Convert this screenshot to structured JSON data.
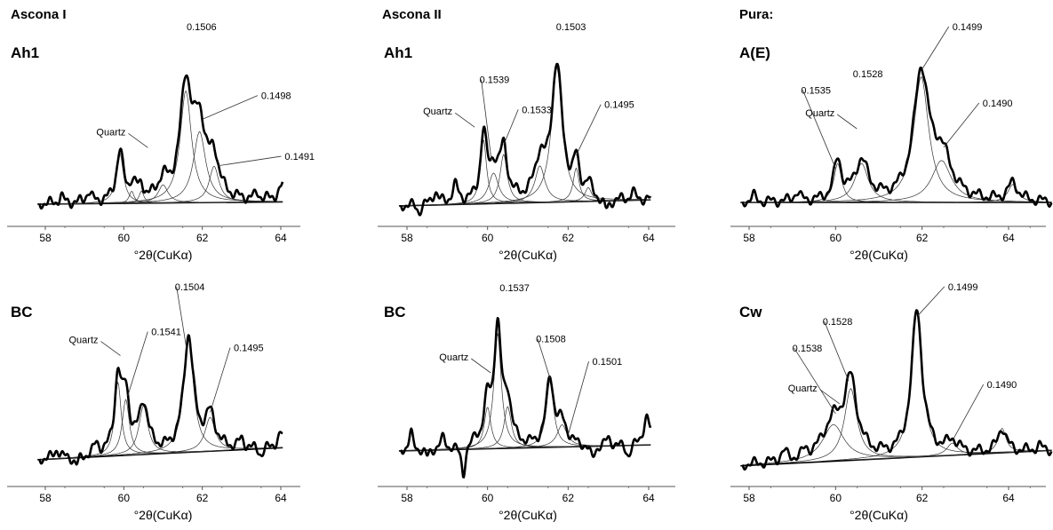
{
  "figure": {
    "column_titles": [
      "Ascona I",
      "Ascona II",
      "Pura:"
    ]
  },
  "chart_data": [
    {
      "type": "line",
      "panel_label": "Ah1",
      "xlabel": "°2θ(CuKα)",
      "xticks": [
        "58",
        "60",
        "62",
        "64"
      ],
      "xlim": [
        57.7,
        65.1
      ],
      "ylim": [
        0,
        1
      ],
      "peaks": [
        {
          "pos": 59.9,
          "h": 0.33,
          "w": 0.22
        },
        {
          "pos": 60.2,
          "h": 0.08,
          "w": 0.15
        },
        {
          "pos": 60.45,
          "h": 0.08,
          "w": 0.15
        },
        {
          "pos": 61.0,
          "h": 0.12,
          "w": 0.3
        },
        {
          "pos": 61.58,
          "h": 0.74,
          "w": 0.35
        },
        {
          "pos": 61.93,
          "h": 0.47,
          "w": 0.38
        },
        {
          "pos": 62.3,
          "h": 0.24,
          "w": 0.3
        }
      ],
      "observed_bumps": [
        {
          "pos": 58.4,
          "h": 0.05,
          "w": 0.12
        },
        {
          "pos": 59.1,
          "h": 0.07,
          "w": 0.15
        },
        {
          "pos": 60.3,
          "h": 0.05,
          "w": 0.15
        },
        {
          "pos": 63.4,
          "h": 0.04,
          "w": 0.15
        },
        {
          "pos": 64.1,
          "h": 0.12,
          "w": 0.3
        }
      ],
      "annotations": [
        {
          "text": "0.1506",
          "x": 61.6,
          "y": 1.06,
          "pos": 61.6
        },
        {
          "text": "0.1498",
          "x": 63.5,
          "y": 0.64,
          "pos": 62.0
        },
        {
          "text": "0.1491",
          "x": 64.1,
          "y": 0.27,
          "pos": 62.4
        },
        {
          "text": "Quartz",
          "x": 59.3,
          "y": 0.42
        }
      ]
    },
    {
      "type": "line",
      "panel_label": "Ah1",
      "xlabel": "°2θ(CuKα)",
      "xticks": [
        "58",
        "60",
        "62",
        "64"
      ],
      "xlim": [
        57.7,
        65.1
      ],
      "ylim": [
        0,
        1
      ],
      "peaks": [
        {
          "pos": 59.9,
          "h": 0.42,
          "w": 0.18
        },
        {
          "pos": 60.15,
          "h": 0.2,
          "w": 0.3
        },
        {
          "pos": 60.4,
          "h": 0.32,
          "w": 0.22
        },
        {
          "pos": 61.3,
          "h": 0.24,
          "w": 0.3
        },
        {
          "pos": 61.72,
          "h": 0.88,
          "w": 0.32
        },
        {
          "pos": 62.2,
          "h": 0.22,
          "w": 0.18
        },
        {
          "pos": 62.5,
          "h": 0.09,
          "w": 0.2
        }
      ],
      "observed_bumps": [
        {
          "pos": 58.3,
          "h": -0.05,
          "w": 0.12
        },
        {
          "pos": 58.7,
          "h": 0.08,
          "w": 0.15
        },
        {
          "pos": 59.2,
          "h": 0.11,
          "w": 0.18
        },
        {
          "pos": 62.95,
          "h": -0.08,
          "w": 0.18
        },
        {
          "pos": 63.6,
          "h": 0.05,
          "w": 0.12
        }
      ],
      "annotations": [
        {
          "text": "0.1503",
          "x": 61.7,
          "y": 1.06,
          "pos": 61.7
        },
        {
          "text": "0.1539",
          "x": 59.8,
          "y": 0.74,
          "pos": 60.1
        },
        {
          "text": "0.1533",
          "x": 60.85,
          "y": 0.56,
          "pos": 60.4
        },
        {
          "text": "0.1495",
          "x": 62.9,
          "y": 0.59,
          "pos": 62.2
        },
        {
          "text": "Quartz",
          "x": 58.4,
          "y": 0.55
        }
      ]
    },
    {
      "type": "line",
      "panel_label": "A(E)",
      "xlabel": "°2θ(CuKα)",
      "xticks": [
        "58",
        "60",
        "62",
        "64"
      ],
      "xlim": [
        57.7,
        65.1
      ],
      "ylim": [
        0,
        1
      ],
      "peaks": [
        {
          "pos": 60.05,
          "h": 0.26,
          "w": 0.22
        },
        {
          "pos": 60.6,
          "h": 0.26,
          "w": 0.38
        },
        {
          "pos": 61.98,
          "h": 0.84,
          "w": 0.42
        },
        {
          "pos": 62.45,
          "h": 0.28,
          "w": 0.55
        },
        {
          "pos": 64.1,
          "h": 0.12,
          "w": 0.28
        }
      ],
      "observed_bumps": [
        {
          "pos": 58.1,
          "h": 0.04,
          "w": 0.12
        },
        {
          "pos": 59.1,
          "h": 0.06,
          "w": 0.15
        }
      ],
      "annotations": [
        {
          "text": "0.1499",
          "x": 62.7,
          "y": 1.06,
          "pos": 62.0
        },
        {
          "text": "0.1535",
          "x": 59.2,
          "y": 0.67,
          "pos": 60.0
        },
        {
          "text": "0.1528",
          "x": 60.4,
          "y": 0.77,
          "pos": 60.5
        },
        {
          "text": "0.1490",
          "x": 63.4,
          "y": 0.59,
          "pos": 62.5
        },
        {
          "text": "Quartz",
          "x": 59.3,
          "y": 0.53
        }
      ]
    },
    {
      "type": "line",
      "panel_label": "BC",
      "xlabel": "°2θ(CuKα)",
      "xticks": [
        "58",
        "60",
        "62",
        "64"
      ],
      "xlim": [
        57.7,
        65.1
      ],
      "ylim": [
        0,
        1
      ],
      "peaks": [
        {
          "pos": 59.85,
          "h": 0.5,
          "w": 0.2
        },
        {
          "pos": 60.05,
          "h": 0.38,
          "w": 0.22
        },
        {
          "pos": 60.5,
          "h": 0.33,
          "w": 0.28
        },
        {
          "pos": 61.65,
          "h": 0.78,
          "w": 0.3
        },
        {
          "pos": 62.2,
          "h": 0.23,
          "w": 0.32
        }
      ],
      "observed_bumps": [
        {
          "pos": 58.3,
          "h": 0.06,
          "w": 0.15
        },
        {
          "pos": 58.8,
          "h": -0.06,
          "w": 0.15
        },
        {
          "pos": 59.3,
          "h": 0.07,
          "w": 0.15
        },
        {
          "pos": 63.0,
          "h": 0.06,
          "w": 0.15
        },
        {
          "pos": 63.5,
          "h": -0.05,
          "w": 0.15
        },
        {
          "pos": 64.0,
          "h": 0.09,
          "w": 0.2
        }
      ],
      "annotations": [
        {
          "text": "0.1504",
          "x": 61.3,
          "y": 1.06,
          "pos": 61.6
        },
        {
          "text": "0.1541",
          "x": 60.7,
          "y": 0.78,
          "pos": 60.1
        },
        {
          "text": "0.1495",
          "x": 62.8,
          "y": 0.68,
          "pos": 62.2
        },
        {
          "text": "Quartz",
          "x": 58.6,
          "y": 0.73
        }
      ]
    },
    {
      "type": "line",
      "panel_label": "BC",
      "xlabel": "°2θ(CuKα)",
      "xticks": [
        "58",
        "60",
        "62",
        "64"
      ],
      "xlim": [
        57.7,
        65.1
      ],
      "ylim": [
        0,
        1
      ],
      "peaks": [
        {
          "pos": 60.0,
          "h": 0.3,
          "w": 0.2
        },
        {
          "pos": 60.25,
          "h": 0.83,
          "w": 0.22
        },
        {
          "pos": 60.5,
          "h": 0.3,
          "w": 0.22
        },
        {
          "pos": 61.55,
          "h": 0.48,
          "w": 0.22
        },
        {
          "pos": 61.85,
          "h": 0.16,
          "w": 0.3
        }
      ],
      "observed_bumps": [
        {
          "pos": 58.1,
          "h": 0.12,
          "w": 0.12
        },
        {
          "pos": 58.5,
          "h": -0.06,
          "w": 0.12
        },
        {
          "pos": 58.9,
          "h": 0.08,
          "w": 0.15
        },
        {
          "pos": 59.4,
          "h": -0.2,
          "w": 0.12
        },
        {
          "pos": 59.7,
          "h": 0.06,
          "w": 0.12
        },
        {
          "pos": 62.6,
          "h": -0.1,
          "w": 0.15
        },
        {
          "pos": 63.0,
          "h": 0.05,
          "w": 0.15
        },
        {
          "pos": 63.5,
          "h": -0.08,
          "w": 0.15
        },
        {
          "pos": 63.95,
          "h": 0.2,
          "w": 0.2
        }
      ],
      "annotations": [
        {
          "text": "0.1537",
          "x": 60.3,
          "y": 1.06,
          "pos": 60.25
        },
        {
          "text": "0.1508",
          "x": 61.2,
          "y": 0.72,
          "pos": 61.55
        },
        {
          "text": "0.1501",
          "x": 62.6,
          "y": 0.57,
          "pos": 62.0
        },
        {
          "text": "Quartz",
          "x": 58.8,
          "y": 0.6
        }
      ]
    },
    {
      "type": "line",
      "panel_label": "Cw",
      "xlabel": "°2θ(CuKα)",
      "xticks": [
        "58",
        "60",
        "62",
        "64"
      ],
      "xlim": [
        57.7,
        65.1
      ],
      "ylim": [
        0,
        1
      ],
      "peaks": [
        {
          "pos": 59.95,
          "h": 0.24,
          "w": 0.6
        },
        {
          "pos": 60.35,
          "h": 0.47,
          "w": 0.35
        },
        {
          "pos": 61.88,
          "h": 0.95,
          "w": 0.3
        },
        {
          "pos": 62.7,
          "h": 0.08,
          "w": 0.3
        },
        {
          "pos": 63.85,
          "h": 0.16,
          "w": 0.22
        }
      ],
      "observed_bumps": [
        {
          "pos": 58.8,
          "h": 0.06,
          "w": 0.18
        },
        {
          "pos": 59.3,
          "h": 0.04,
          "w": 0.15
        },
        {
          "pos": 64.7,
          "h": 0.03,
          "w": 0.15
        }
      ],
      "annotations": [
        {
          "text": "0.1499",
          "x": 62.6,
          "y": 1.06,
          "pos": 61.9
        },
        {
          "text": "0.1528",
          "x": 59.7,
          "y": 0.85,
          "pos": 60.3
        },
        {
          "text": "0.1538",
          "x": 59.0,
          "y": 0.69,
          "pos": 60.0
        },
        {
          "text": "0.1490",
          "x": 63.5,
          "y": 0.47,
          "pos": 62.7
        },
        {
          "text": "Quartz",
          "x": 58.9,
          "y": 0.45
        }
      ]
    }
  ]
}
